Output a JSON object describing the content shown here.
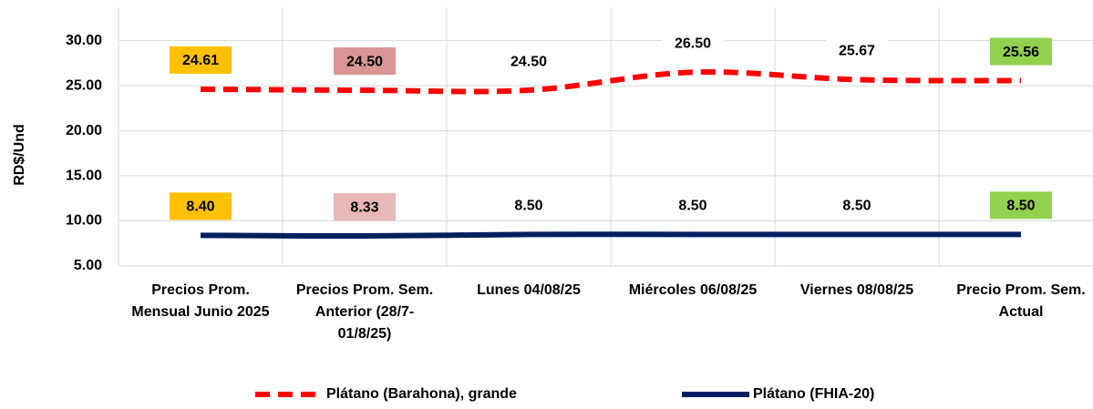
{
  "chart_data": {
    "type": "line",
    "y_label": "RD$/Und",
    "categories": [
      "Precios Prom. Mensual Junio 2025",
      "Precios Prom. Sem. Anterior (28/7-01/8/25)",
      "Lunes 04/08/25",
      "Miércoles 06/08/25",
      "Viernes 08/08/25",
      "Precio Prom. Sem. Actual"
    ],
    "series": [
      {
        "name": "Plátano (Barahona), grande",
        "color": "#ff0000",
        "dashed": true,
        "values": [
          24.61,
          24.5,
          24.5,
          26.5,
          25.67,
          25.56
        ],
        "value_labels": [
          "24.61",
          "24.50",
          "24.50",
          "26.50",
          "25.67",
          "25.56"
        ],
        "label_colors": [
          "#ffc000",
          "#d99694",
          "#ffffff",
          "#ffffff",
          "#ffffff",
          "#92d050"
        ]
      },
      {
        "name": "Plátano (FHIA-20)",
        "color": "#002060",
        "dashed": false,
        "values": [
          8.4,
          8.33,
          8.5,
          8.5,
          8.5,
          8.5
        ],
        "value_labels": [
          "8.40",
          "8.33",
          "8.50",
          "8.50",
          "8.50",
          "8.50"
        ],
        "label_colors": [
          "#ffc000",
          "#e6b8b7",
          "#ffffff",
          "#ffffff",
          "#ffffff",
          "#92d050"
        ]
      }
    ],
    "ylim": [
      5,
      33.7
    ],
    "yticks": [
      {
        "value": 5,
        "label": "5.00"
      },
      {
        "value": 10,
        "label": "10.00"
      },
      {
        "value": 15,
        "label": "15.00"
      },
      {
        "value": 20,
        "label": "20.00"
      },
      {
        "value": 25,
        "label": "25.00"
      },
      {
        "value": 30,
        "label": "30.00"
      }
    ],
    "grid": true,
    "legend": "bottom"
  }
}
